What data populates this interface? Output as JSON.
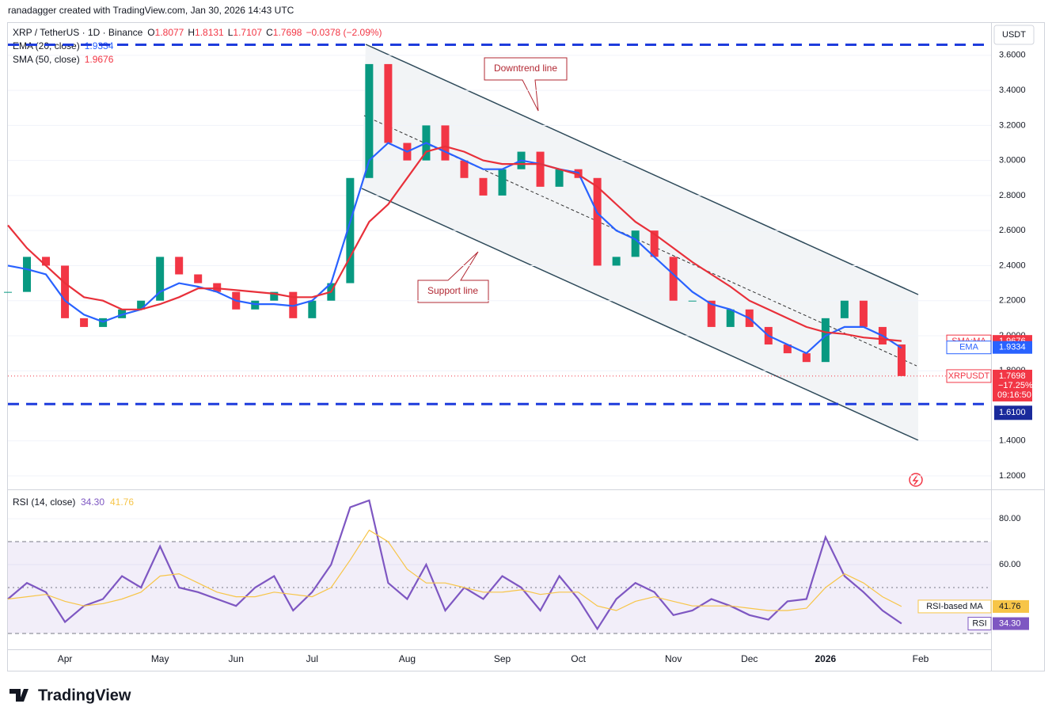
{
  "header": {
    "author": "ranadagger created with TradingView.com, Jan 30, 2026 14:43 UTC",
    "symbol": "XRP / TetherUS · 1D · Binance",
    "o_label": "O",
    "open": "1.8077",
    "h_label": "H",
    "high": "1.8131",
    "l_label": "L",
    "low": "1.7107",
    "c_label": "C",
    "close": "1.7698",
    "change": "−0.0378 (−2.09%)",
    "ema_legend": "EMA (20, close)",
    "ema_value": "1.9334",
    "sma_legend": "SMA (50, close)",
    "sma_value": "1.9676",
    "currency": "USDT"
  },
  "annotations": {
    "downtrend": "Downtrend line",
    "support": "Support line"
  },
  "footer": {
    "brand": "TradingView"
  },
  "chart_data": [
    {
      "type": "line",
      "up_color": "#089981",
      "down_color": "#f23645",
      "categories": [
        null,
        null,
        null,
        "Apr",
        null,
        null,
        null,
        null,
        "May",
        null,
        null,
        null,
        "Jun",
        null,
        null,
        null,
        "Jul",
        null,
        null,
        null,
        null,
        "Aug",
        null,
        null,
        null,
        null,
        "Sep",
        null,
        null,
        null,
        "Oct",
        null,
        null,
        null,
        null,
        "Nov",
        null,
        null,
        null,
        "Dec",
        null,
        null,
        null,
        "2026",
        null,
        null,
        null,
        null,
        "Feb"
      ],
      "series": [
        {
          "name": "XRPUSDT",
          "color": "#f23645",
          "values": [
            2.25,
            2.45,
            2.4,
            2.1,
            2.05,
            2.1,
            2.15,
            2.2,
            2.45,
            2.35,
            2.3,
            2.25,
            2.15,
            2.2,
            2.25,
            2.1,
            2.2,
            2.3,
            2.9,
            3.55,
            3.1,
            3.0,
            3.2,
            3.0,
            2.9,
            2.8,
            2.95,
            3.05,
            2.85,
            2.95,
            2.9,
            2.4,
            2.45,
            2.6,
            2.45,
            2.2,
            2.2,
            2.05,
            2.15,
            2.05,
            1.95,
            1.9,
            1.85,
            2.1,
            2.2,
            2.05,
            1.95,
            1.77,
            null
          ]
        },
        {
          "name": "EMA",
          "color": "#2962ff",
          "values": [
            2.4,
            2.38,
            2.35,
            2.2,
            2.12,
            2.08,
            2.12,
            2.15,
            2.25,
            2.3,
            2.28,
            2.25,
            2.2,
            2.18,
            2.18,
            2.17,
            2.2,
            2.3,
            2.65,
            3.0,
            3.1,
            3.05,
            3.1,
            3.05,
            3.0,
            2.95,
            2.95,
            3.0,
            2.98,
            2.95,
            2.93,
            2.7,
            2.6,
            2.55,
            2.45,
            2.35,
            2.25,
            2.18,
            2.15,
            2.1,
            2.0,
            1.95,
            1.9,
            2.0,
            2.05,
            2.05,
            2.0,
            1.93,
            null
          ]
        },
        {
          "name": "SMA:MA",
          "color": "#e8303a",
          "values": [
            2.63,
            2.5,
            2.4,
            2.3,
            2.22,
            2.2,
            2.15,
            2.15,
            2.18,
            2.22,
            2.27,
            2.27,
            2.26,
            2.25,
            2.24,
            2.22,
            2.22,
            2.25,
            2.45,
            2.65,
            2.75,
            2.9,
            3.05,
            3.08,
            3.05,
            3.0,
            2.98,
            2.98,
            2.98,
            2.95,
            2.92,
            2.85,
            2.75,
            2.65,
            2.58,
            2.5,
            2.42,
            2.35,
            2.28,
            2.2,
            2.15,
            2.1,
            2.05,
            2.02,
            2.01,
            1.99,
            1.98,
            1.97,
            null
          ]
        }
      ],
      "ylim": [
        1.137,
        3.78
      ],
      "yticks": [
        {
          "value": 1.2,
          "label": "1.2000"
        },
        {
          "value": 1.4,
          "label": "1.4000"
        },
        {
          "value": 1.8,
          "label": "1.8000"
        },
        {
          "value": 2.0,
          "label": "2.0000"
        },
        {
          "value": 2.2,
          "label": "2.2000"
        },
        {
          "value": 2.4,
          "label": "2.4000"
        },
        {
          "value": 2.6,
          "label": "2.6000"
        },
        {
          "value": 2.8,
          "label": "2.8000"
        },
        {
          "value": 3.0,
          "label": "3.0000"
        },
        {
          "value": 3.2,
          "label": "3.2000"
        },
        {
          "value": 3.4,
          "label": "3.4000"
        },
        {
          "value": 3.6,
          "label": "3.6000"
        }
      ],
      "levels": [
        3.66,
        {
          "value": 1.61,
          "label": "1.6100"
        }
      ],
      "price_labels": [
        {
          "name": "SMA:MA",
          "value": 1.9676,
          "label": "1.9676",
          "color": "#f23645"
        },
        {
          "name": "EMA",
          "value": 1.9334,
          "label": "1.9334",
          "color": "#2962ff"
        },
        {
          "name": "XRPUSDT",
          "value": 1.7698,
          "label": "1.7698",
          "color": "#f23645",
          "change": "−17.25%",
          "countdown": "09:16:50"
        }
      ]
    },
    {
      "type": "line",
      "title": "RSI (14, close)",
      "title_values": [
        "34.30",
        "41.76"
      ],
      "series": [
        {
          "name": "RSI",
          "color": "#7e57c2",
          "values": [
            45,
            52,
            48,
            35,
            42,
            45,
            55,
            50,
            68,
            50,
            48,
            45,
            42,
            50,
            55,
            40,
            48,
            60,
            85,
            88,
            52,
            45,
            60,
            40,
            50,
            45,
            55,
            50,
            40,
            55,
            45,
            32,
            45,
            52,
            48,
            38,
            40,
            45,
            42,
            38,
            36,
            44,
            45,
            72,
            55,
            48,
            40,
            34.3,
            null
          ]
        },
        {
          "name": "RSI-based MA",
          "color": "#f7c548",
          "values": [
            45,
            46,
            47,
            44,
            42,
            43,
            45,
            48,
            55,
            56,
            52,
            48,
            46,
            46,
            48,
            47,
            46,
            50,
            62,
            75,
            70,
            58,
            52,
            52,
            50,
            48,
            48,
            49,
            47,
            48,
            48,
            42,
            40,
            44,
            46,
            44,
            42,
            42,
            42,
            41,
            40,
            40,
            41,
            50,
            56,
            52,
            46,
            41.76,
            null
          ]
        }
      ],
      "value_labels": [
        "34.30",
        "41.76"
      ],
      "ylim": [
        23.1,
        92.1
      ],
      "yticks": [
        {
          "value": 60,
          "label": "60.00"
        },
        {
          "value": 80,
          "label": "80.00"
        }
      ],
      "band": [
        30,
        70
      ],
      "midline": 50
    }
  ]
}
